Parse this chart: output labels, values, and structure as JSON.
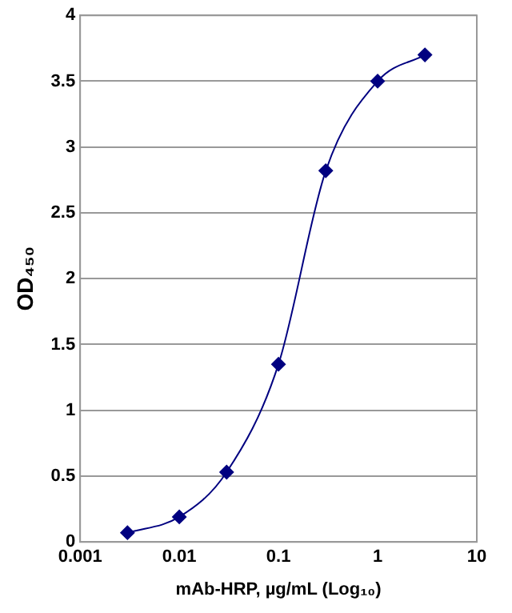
{
  "chart_data": {
    "type": "line",
    "xlabel": "mAb-HRP, µg/mL (Log₁₀)",
    "ylabel": "OD₄₅₀",
    "x": [
      0.003,
      0.01,
      0.03,
      0.1,
      0.3,
      1,
      3
    ],
    "series": [
      {
        "color": "#000080",
        "values": [
          0.07,
          0.19,
          0.53,
          1.35,
          2.82,
          3.5,
          3.7
        ]
      }
    ],
    "log": "x",
    "xlim": [
      0.001,
      10
    ],
    "xticks": [
      0.001,
      0.01,
      0.1,
      1,
      10
    ],
    "ylim": [
      0,
      4
    ],
    "yticks": [
      0,
      0.5,
      1,
      1.5,
      2,
      2.5,
      3,
      3.5,
      4
    ],
    "grid": "y",
    "legend": false,
    "marker": "diamond",
    "line_style": "solid"
  }
}
